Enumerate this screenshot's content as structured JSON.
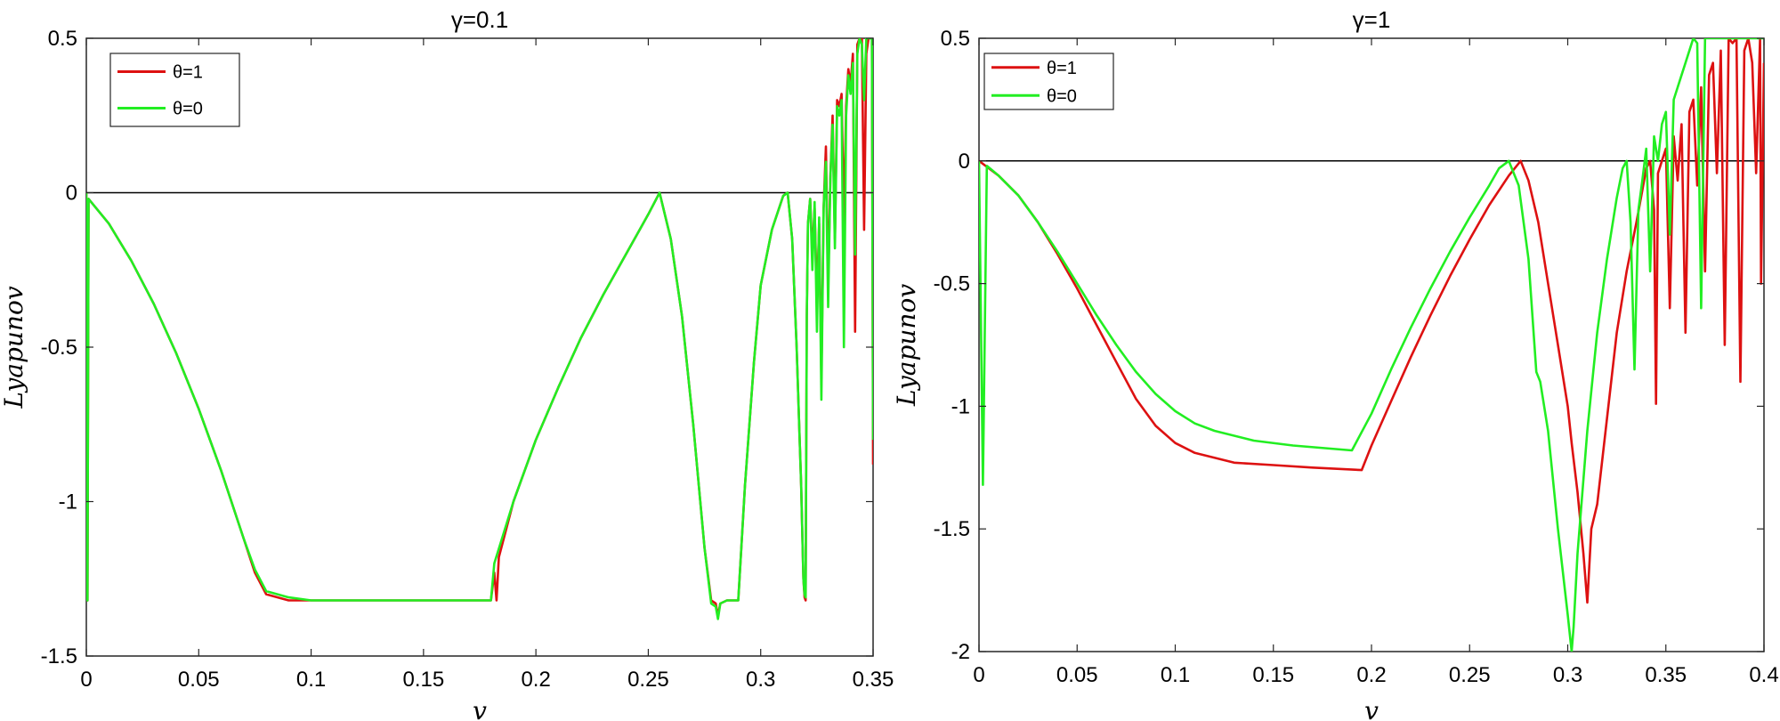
{
  "chart_data": [
    {
      "type": "line",
      "title": "γ=0.1",
      "xlabel": "v",
      "ylabel": "Lyapunov",
      "xlim": [
        0,
        0.35
      ],
      "ylim": [
        -1.5,
        0.5
      ],
      "xticks": [
        "0",
        "0.05",
        "0.1",
        "0.15",
        "0.2",
        "0.25",
        "0.3",
        "0.35"
      ],
      "yticks": [
        "0.5",
        "0",
        "-0.5",
        "-1",
        "-1.5"
      ],
      "legend": "top-left",
      "grid": false,
      "zero_line": true,
      "series": [
        {
          "name": "θ=1",
          "color": "#dd1111",
          "x": [
            0,
            0.0005,
            0.001,
            0.01,
            0.02,
            0.03,
            0.04,
            0.05,
            0.06,
            0.07,
            0.075,
            0.08,
            0.09,
            0.1,
            0.15,
            0.18,
            0.1815,
            0.1825,
            0.1835,
            0.19,
            0.2,
            0.21,
            0.22,
            0.23,
            0.24,
            0.25,
            0.255,
            0.26,
            0.265,
            0.27,
            0.275,
            0.278,
            0.28,
            0.281,
            0.282,
            0.285,
            0.29,
            0.293,
            0.297,
            0.3,
            0.305,
            0.31,
            0.312,
            0.314,
            0.316,
            0.318,
            0.319,
            0.3195,
            0.32,
            0.3205,
            0.321,
            0.322,
            0.323,
            0.324,
            0.325,
            0.326,
            0.327,
            0.328,
            0.329,
            0.33,
            0.331,
            0.332,
            0.333,
            0.334,
            0.335,
            0.336,
            0.337,
            0.338,
            0.339,
            0.34,
            0.341,
            0.342,
            0.343,
            0.344,
            0.345,
            0.346,
            0.347,
            0.348,
            0.349,
            0.3495,
            0.35
          ],
          "y": [
            0,
            -1.32,
            -0.02,
            -0.1,
            -0.22,
            -0.36,
            -0.52,
            -0.7,
            -0.9,
            -1.12,
            -1.23,
            -1.3,
            -1.32,
            -1.32,
            -1.32,
            -1.32,
            -1.23,
            -1.32,
            -1.18,
            -1.0,
            -0.8,
            -0.63,
            -0.47,
            -0.33,
            -0.2,
            -0.07,
            0,
            -0.15,
            -0.4,
            -0.75,
            -1.15,
            -1.32,
            -1.33,
            -1.37,
            -1.33,
            -1.32,
            -1.32,
            -0.95,
            -0.55,
            -0.3,
            -0.12,
            -0.01,
            0,
            -0.15,
            -0.5,
            -0.95,
            -1.25,
            -1.31,
            -1.32,
            -0.4,
            -0.1,
            -0.02,
            -0.2,
            -0.05,
            -0.35,
            -0.1,
            -0.6,
            -0.05,
            0.15,
            -0.3,
            0.05,
            0.25,
            -0.15,
            0.3,
            0.28,
            0.32,
            -0.1,
            0.28,
            0.4,
            0.35,
            0.45,
            -0.45,
            0.48,
            0.5,
            0.5,
            -0.12,
            0.45,
            0.5,
            0.5,
            0.5,
            -0.88
          ]
        },
        {
          "name": "θ=0",
          "color": "#22ee22",
          "x": [
            0,
            0.0005,
            0.001,
            0.01,
            0.02,
            0.03,
            0.04,
            0.05,
            0.06,
            0.07,
            0.075,
            0.08,
            0.09,
            0.1,
            0.15,
            0.18,
            0.1815,
            0.19,
            0.2,
            0.21,
            0.22,
            0.23,
            0.24,
            0.25,
            0.255,
            0.26,
            0.265,
            0.27,
            0.275,
            0.278,
            0.28,
            0.281,
            0.282,
            0.285,
            0.29,
            0.293,
            0.297,
            0.3,
            0.305,
            0.31,
            0.312,
            0.314,
            0.316,
            0.318,
            0.319,
            0.3195,
            0.32,
            0.3205,
            0.321,
            0.322,
            0.323,
            0.324,
            0.325,
            0.326,
            0.327,
            0.328,
            0.329,
            0.33,
            0.331,
            0.332,
            0.333,
            0.334,
            0.335,
            0.336,
            0.337,
            0.338,
            0.339,
            0.34,
            0.341,
            0.342,
            0.343,
            0.344,
            0.345,
            0.346,
            0.347,
            0.348,
            0.349,
            0.3495,
            0.35
          ],
          "y": [
            0,
            -1.32,
            -0.02,
            -0.1,
            -0.22,
            -0.36,
            -0.52,
            -0.7,
            -0.9,
            -1.12,
            -1.22,
            -1.29,
            -1.31,
            -1.32,
            -1.32,
            -1.32,
            -1.2,
            -1.0,
            -0.8,
            -0.63,
            -0.47,
            -0.33,
            -0.2,
            -0.07,
            0,
            -0.15,
            -0.4,
            -0.75,
            -1.15,
            -1.33,
            -1.34,
            -1.38,
            -1.33,
            -1.32,
            -1.32,
            -0.95,
            -0.55,
            -0.3,
            -0.12,
            -0.01,
            0,
            -0.15,
            -0.5,
            -0.95,
            -1.25,
            -1.3,
            -1.31,
            -0.4,
            -0.1,
            -0.02,
            -0.25,
            -0.03,
            -0.45,
            -0.08,
            -0.67,
            -0.05,
            0.1,
            -0.37,
            0.05,
            0.22,
            -0.18,
            0.28,
            0.25,
            0.3,
            -0.5,
            0.25,
            0.38,
            0.32,
            0.42,
            -0.2,
            0.45,
            0.5,
            0.48,
            0.3,
            0.5,
            0.5,
            0.5,
            0.5,
            -0.8
          ]
        }
      ]
    },
    {
      "type": "line",
      "title": "γ=1",
      "xlabel": "v",
      "ylabel": "Lyapunov",
      "xlim": [
        0,
        0.4
      ],
      "ylim": [
        -2,
        0.5
      ],
      "xticks": [
        "0",
        "0.05",
        "0.1",
        "0.15",
        "0.2",
        "0.25",
        "0.3",
        "0.35",
        "0.4"
      ],
      "yticks": [
        "0.5",
        "0",
        "-0.5",
        "-1",
        "-1.5",
        "-2"
      ],
      "legend": "top-left",
      "grid": false,
      "zero_line": true,
      "series": [
        {
          "name": "θ=1",
          "color": "#dd1111",
          "x": [
            0,
            0.01,
            0.02,
            0.03,
            0.04,
            0.05,
            0.06,
            0.07,
            0.08,
            0.09,
            0.1,
            0.11,
            0.12,
            0.13,
            0.15,
            0.17,
            0.195,
            0.2,
            0.21,
            0.22,
            0.23,
            0.24,
            0.25,
            0.26,
            0.27,
            0.276,
            0.28,
            0.285,
            0.29,
            0.295,
            0.3,
            0.302,
            0.305,
            0.308,
            0.31,
            0.312,
            0.315,
            0.32,
            0.325,
            0.33,
            0.335,
            0.338,
            0.34,
            0.342,
            0.344,
            0.345,
            0.346,
            0.348,
            0.35,
            0.352,
            0.354,
            0.356,
            0.358,
            0.36,
            0.362,
            0.364,
            0.366,
            0.368,
            0.37,
            0.372,
            0.374,
            0.376,
            0.378,
            0.38,
            0.382,
            0.384,
            0.386,
            0.388,
            0.39,
            0.392,
            0.394,
            0.396,
            0.398,
            0.3985,
            0.4
          ],
          "y": [
            0,
            -0.06,
            -0.14,
            -0.25,
            -0.38,
            -0.52,
            -0.67,
            -0.82,
            -0.97,
            -1.08,
            -1.15,
            -1.19,
            -1.21,
            -1.23,
            -1.24,
            -1.25,
            -1.26,
            -1.16,
            -0.98,
            -0.8,
            -0.63,
            -0.47,
            -0.32,
            -0.18,
            -0.06,
            0,
            -0.08,
            -0.25,
            -0.5,
            -0.75,
            -1.0,
            -1.15,
            -1.35,
            -1.6,
            -1.8,
            -1.5,
            -1.4,
            -1.05,
            -0.7,
            -0.45,
            -0.25,
            -0.12,
            -0.03,
            0,
            -0.2,
            -0.99,
            -0.05,
            0.0,
            0.05,
            -0.6,
            0.1,
            -0.08,
            0.15,
            -0.7,
            0.2,
            0.25,
            -0.1,
            0.3,
            -0.45,
            0.35,
            0.4,
            -0.05,
            0.45,
            -0.75,
            0.5,
            0.48,
            0.5,
            -0.9,
            0.45,
            0.5,
            0.4,
            -0.05,
            0.5,
            -0.5,
            0.4
          ]
        },
        {
          "name": "θ=0",
          "color": "#22ee22",
          "x": [
            0,
            0.002,
            0.004,
            0.01,
            0.02,
            0.03,
            0.04,
            0.05,
            0.06,
            0.07,
            0.08,
            0.09,
            0.1,
            0.11,
            0.12,
            0.14,
            0.16,
            0.19,
            0.2,
            0.21,
            0.22,
            0.23,
            0.24,
            0.25,
            0.26,
            0.265,
            0.27,
            0.275,
            0.28,
            0.284,
            0.286,
            0.29,
            0.295,
            0.3,
            0.302,
            0.303,
            0.305,
            0.31,
            0.315,
            0.32,
            0.325,
            0.328,
            0.33,
            0.332,
            0.334,
            0.336,
            0.338,
            0.34,
            0.342,
            0.344,
            0.346,
            0.348,
            0.35,
            0.352,
            0.354,
            0.356,
            0.358,
            0.36,
            0.362,
            0.364,
            0.366,
            0.368,
            0.37,
            0.372,
            0.374,
            0.376,
            0.378,
            0.38,
            0.382,
            0.384,
            0.386,
            0.388,
            0.39,
            0.392,
            0.394,
            0.396,
            0.398,
            0.4
          ],
          "y": [
            0,
            -1.32,
            -0.02,
            -0.06,
            -0.14,
            -0.25,
            -0.37,
            -0.5,
            -0.63,
            -0.75,
            -0.86,
            -0.95,
            -1.02,
            -1.07,
            -1.1,
            -1.14,
            -1.16,
            -1.18,
            -1.03,
            -0.85,
            -0.68,
            -0.52,
            -0.37,
            -0.23,
            -0.1,
            -0.03,
            0,
            -0.1,
            -0.4,
            -0.86,
            -0.9,
            -1.1,
            -1.5,
            -1.85,
            -2.0,
            -1.9,
            -1.6,
            -1.1,
            -0.7,
            -0.4,
            -0.15,
            -0.03,
            0,
            -0.25,
            -0.85,
            -0.2,
            -0.08,
            0.05,
            -0.45,
            0.1,
            0.0,
            0.15,
            0.2,
            -0.3,
            0.25,
            0.3,
            0.35,
            0.4,
            0.45,
            0.5,
            0.48,
            -0.6,
            0.5,
            0.5,
            0.5,
            0.5,
            0.5,
            0.5,
            0.5,
            0.5,
            0.5,
            0.5,
            0.5,
            0.5,
            0.5,
            0.5,
            0.5,
            0.5
          ]
        }
      ]
    }
  ]
}
